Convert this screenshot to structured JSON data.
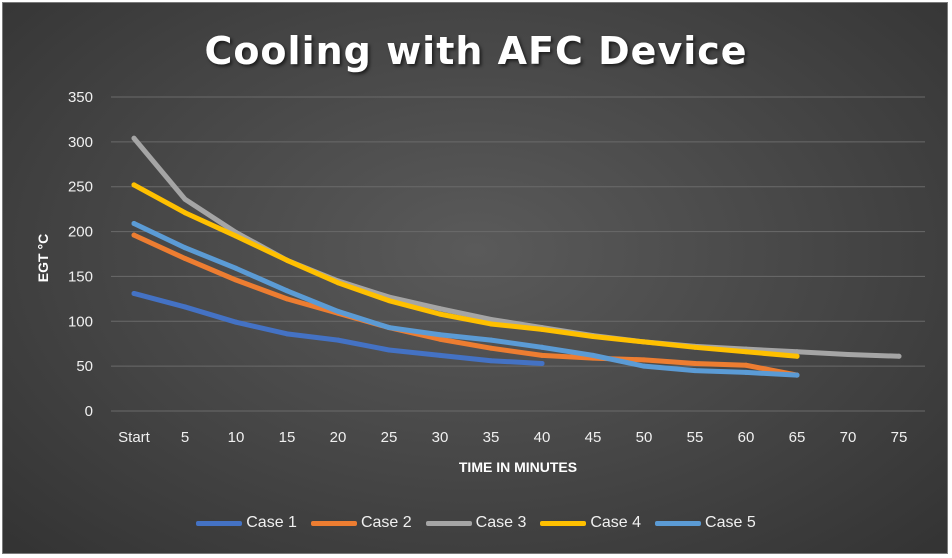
{
  "chart_data": {
    "type": "line",
    "title": "Cooling with AFC Device",
    "xlabel": "TIME IN MINUTES",
    "ylabel": "EGT °C",
    "categories": [
      "Start",
      "5",
      "10",
      "15",
      "20",
      "25",
      "30",
      "35",
      "40",
      "45",
      "50",
      "55",
      "60",
      "65",
      "70",
      "75"
    ],
    "ylim": [
      0,
      350
    ],
    "yticks": [
      "0",
      "50",
      "100",
      "150",
      "200",
      "250",
      "300",
      "350"
    ],
    "grid": true,
    "legend_position": "bottom",
    "series": [
      {
        "name": "Case 1",
        "color": "#4472C4",
        "values": [
          131,
          116,
          99,
          86,
          79,
          68,
          62,
          56,
          53,
          null,
          null,
          null,
          null,
          null,
          null,
          null
        ]
      },
      {
        "name": "Case 2",
        "color": "#ED7D31",
        "values": [
          196,
          170,
          146,
          125,
          109,
          93,
          80,
          70,
          62,
          59,
          57,
          53,
          51,
          40,
          null,
          null
        ]
      },
      {
        "name": "Case 3",
        "color": "#A5A5A5",
        "values": [
          304,
          236,
          199,
          168,
          145,
          127,
          114,
          102,
          93,
          84,
          77,
          72,
          69,
          66,
          63,
          61
        ]
      },
      {
        "name": "Case 4",
        "color": "#FFC000",
        "values": [
          252,
          221,
          195,
          168,
          143,
          123,
          108,
          97,
          91,
          83,
          77,
          71,
          66,
          61,
          null,
          null
        ]
      },
      {
        "name": "Case 5",
        "color": "#5B9BD5",
        "values": [
          209,
          182,
          159,
          134,
          111,
          93,
          85,
          79,
          71,
          62,
          50,
          45,
          43,
          40,
          null,
          null
        ]
      }
    ]
  }
}
